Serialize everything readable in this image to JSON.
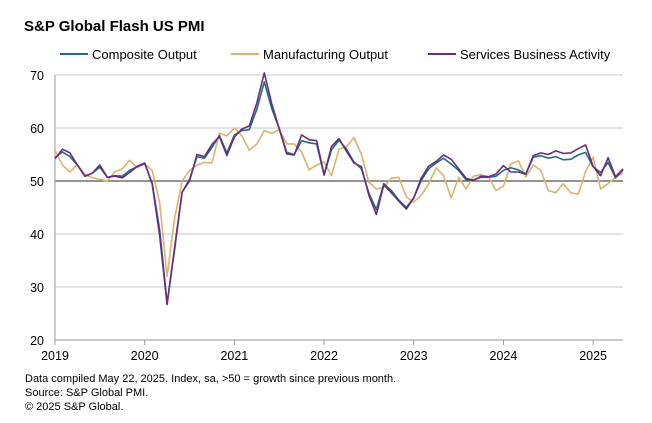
{
  "chart_data": {
    "type": "line",
    "title": "S&P Global Flash US PMI",
    "xlabel": "",
    "ylabel": "",
    "ylim": [
      20,
      70
    ],
    "yticks": [
      20,
      30,
      40,
      50,
      60,
      70
    ],
    "xtick_labels": [
      "2019",
      "2020",
      "2021",
      "2022",
      "2023",
      "2024",
      "2025"
    ],
    "x_range": [
      "2019-01",
      "2025-05"
    ],
    "reference_line": 50,
    "grid": "horizontal",
    "legend_position": "top",
    "months": [
      "2019-01",
      "2019-02",
      "2019-03",
      "2019-04",
      "2019-05",
      "2019-06",
      "2019-07",
      "2019-08",
      "2019-09",
      "2019-10",
      "2019-11",
      "2019-12",
      "2020-01",
      "2020-02",
      "2020-03",
      "2020-04",
      "2020-05",
      "2020-06",
      "2020-07",
      "2020-08",
      "2020-09",
      "2020-10",
      "2020-11",
      "2020-12",
      "2021-01",
      "2021-02",
      "2021-03",
      "2021-04",
      "2021-05",
      "2021-06",
      "2021-07",
      "2021-08",
      "2021-09",
      "2021-10",
      "2021-11",
      "2021-12",
      "2022-01",
      "2022-02",
      "2022-03",
      "2022-04",
      "2022-05",
      "2022-06",
      "2022-07",
      "2022-08",
      "2022-09",
      "2022-10",
      "2022-11",
      "2022-12",
      "2023-01",
      "2023-02",
      "2023-03",
      "2023-04",
      "2023-05",
      "2023-06",
      "2023-07",
      "2023-08",
      "2023-09",
      "2023-10",
      "2023-11",
      "2023-12",
      "2024-01",
      "2024-02",
      "2024-03",
      "2024-04",
      "2024-05",
      "2024-06",
      "2024-07",
      "2024-08",
      "2024-09",
      "2024-10",
      "2024-11",
      "2024-12",
      "2025-01",
      "2025-02",
      "2025-03",
      "2025-04",
      "2025-05"
    ],
    "series": [
      {
        "name": "Composite Output",
        "color": "#1e6f7b",
        "values": [
          54.4,
          55.5,
          54.6,
          53.0,
          50.9,
          51.5,
          52.6,
          50.7,
          51.0,
          50.9,
          52.0,
          52.7,
          53.3,
          49.6,
          40.9,
          27.0,
          37.0,
          47.9,
          50.3,
          54.6,
          54.3,
          56.3,
          58.6,
          55.3,
          58.7,
          59.5,
          59.7,
          63.5,
          68.7,
          63.7,
          59.9,
          55.4,
          55.0,
          57.6,
          57.2,
          57.0,
          51.1,
          55.9,
          57.7,
          56.0,
          53.6,
          52.3,
          47.7,
          44.6,
          49.5,
          48.2,
          46.4,
          45.0,
          46.8,
          50.1,
          52.3,
          53.4,
          54.3,
          53.2,
          52.0,
          50.2,
          50.2,
          50.7,
          50.7,
          50.9,
          52.0,
          52.5,
          52.1,
          51.3,
          54.5,
          54.8,
          54.3,
          54.6,
          54.0,
          54.1,
          54.9,
          55.4,
          52.7,
          51.6,
          53.5,
          50.6,
          52.1
        ]
      },
      {
        "name": "Manufacturing Output",
        "color": "#e0b06e",
        "values": [
          55.8,
          53.0,
          51.7,
          53.1,
          51.3,
          50.6,
          50.3,
          50.0,
          51.7,
          52.3,
          53.9,
          52.5,
          53.2,
          52.0,
          46.0,
          32.0,
          43.0,
          50.0,
          52.0,
          53.0,
          53.5,
          53.4,
          59.0,
          58.5,
          60.0,
          58.5,
          55.8,
          57.0,
          59.5,
          59.0,
          59.7,
          57.0,
          57.0,
          55.5,
          52.1,
          53.0,
          53.6,
          51.0,
          56.0,
          56.5,
          58.2,
          55.0,
          49.8,
          48.5,
          48.8,
          50.5,
          50.7,
          47.0,
          46.0,
          47.3,
          49.5,
          52.5,
          51.0,
          46.8,
          50.7,
          48.5,
          50.9,
          51.2,
          50.8,
          48.2,
          49.0,
          53.2,
          53.8,
          50.8,
          53.0,
          52.0,
          48.2,
          47.8,
          49.5,
          47.8,
          47.5,
          51.8,
          54.5,
          48.5,
          49.5,
          50.7,
          51.5
        ]
      },
      {
        "name": "Services Business Activity",
        "color": "#6b2c7f",
        "values": [
          54.2,
          56.0,
          55.3,
          53.0,
          50.9,
          51.5,
          53.0,
          50.7,
          50.9,
          50.6,
          51.6,
          52.8,
          53.4,
          49.4,
          39.8,
          26.7,
          37.5,
          47.9,
          50.0,
          55.0,
          54.6,
          56.9,
          58.4,
          54.8,
          58.3,
          59.8,
          60.4,
          64.7,
          70.4,
          64.6,
          59.9,
          55.1,
          54.9,
          58.7,
          57.8,
          57.6,
          51.2,
          56.5,
          58.0,
          55.6,
          53.4,
          52.7,
          47.3,
          43.7,
          49.3,
          47.8,
          46.2,
          44.7,
          46.8,
          50.5,
          52.8,
          53.7,
          54.9,
          54.1,
          52.3,
          50.5,
          50.1,
          50.9,
          50.8,
          51.3,
          52.9,
          51.7,
          51.7,
          51.3,
          54.8,
          55.3,
          55.0,
          55.7,
          55.2,
          55.3,
          56.1,
          56.8,
          52.8,
          51.0,
          54.4,
          50.8,
          52.3
        ]
      }
    ]
  },
  "legend": [
    "Composite Output",
    "Manufacturing Output",
    "Services Business Activity"
  ],
  "footnotes": [
    "Data compiled May 22, 2025. Index, sa, >50 = growth since previous month.",
    "Source: S&P Global PMI.",
    "© 2025 S&P Global."
  ]
}
